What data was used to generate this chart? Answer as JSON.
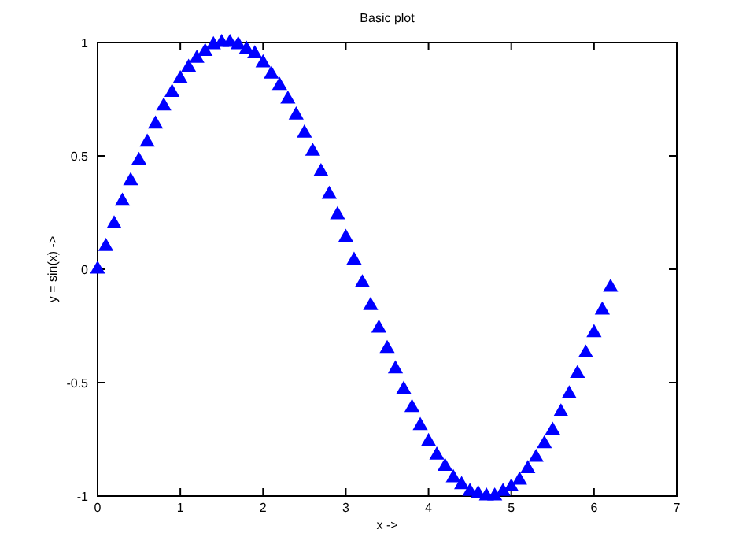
{
  "chart_data": {
    "type": "scatter",
    "title": "Basic plot",
    "xlabel": "x ->",
    "ylabel": "y = sin(x) ->",
    "marker": "triangle",
    "grid": false,
    "xlim": [
      0,
      7
    ],
    "ylim": [
      -1,
      1
    ],
    "xticks": [
      0,
      1,
      2,
      3,
      4,
      5,
      6,
      7
    ],
    "yticks": [
      -1,
      -0.5,
      0,
      0.5,
      1
    ],
    "x": [
      0,
      0.1,
      0.2,
      0.3,
      0.4,
      0.5,
      0.6,
      0.7,
      0.8,
      0.9,
      1.0,
      1.1,
      1.2,
      1.3,
      1.4,
      1.5,
      1.6,
      1.7,
      1.8,
      1.9,
      2.0,
      2.1,
      2.2,
      2.3,
      2.4,
      2.5,
      2.6,
      2.7,
      2.8,
      2.9,
      3.0,
      3.1,
      3.2,
      3.3,
      3.4,
      3.5,
      3.6,
      3.7,
      3.8,
      3.9,
      4.0,
      4.1,
      4.2,
      4.3,
      4.4,
      4.5,
      4.6,
      4.7,
      4.8,
      4.9,
      5.0,
      5.1,
      5.2,
      5.3,
      5.4,
      5.5,
      5.6,
      5.7,
      5.8,
      5.9,
      6.0,
      6.1,
      6.2
    ],
    "series": [
      {
        "color": "#0000ff",
        "values": [
          0,
          0.1,
          0.2,
          0.3,
          0.39,
          0.48,
          0.56,
          0.64,
          0.72,
          0.78,
          0.84,
          0.89,
          0.93,
          0.96,
          0.99,
          1.0,
          1.0,
          0.99,
          0.97,
          0.95,
          0.91,
          0.86,
          0.81,
          0.75,
          0.68,
          0.6,
          0.52,
          0.43,
          0.33,
          0.24,
          0.14,
          0.04,
          -0.06,
          -0.16,
          -0.26,
          -0.35,
          -0.44,
          -0.53,
          -0.61,
          -0.69,
          -0.76,
          -0.82,
          -0.87,
          -0.92,
          -0.95,
          -0.98,
          -0.99,
          -1.0,
          -1.0,
          -0.98,
          -0.96,
          -0.93,
          -0.88,
          -0.83,
          -0.77,
          -0.71,
          -0.63,
          -0.55,
          -0.46,
          -0.37,
          -0.28,
          -0.18,
          -0.08
        ]
      }
    ]
  }
}
